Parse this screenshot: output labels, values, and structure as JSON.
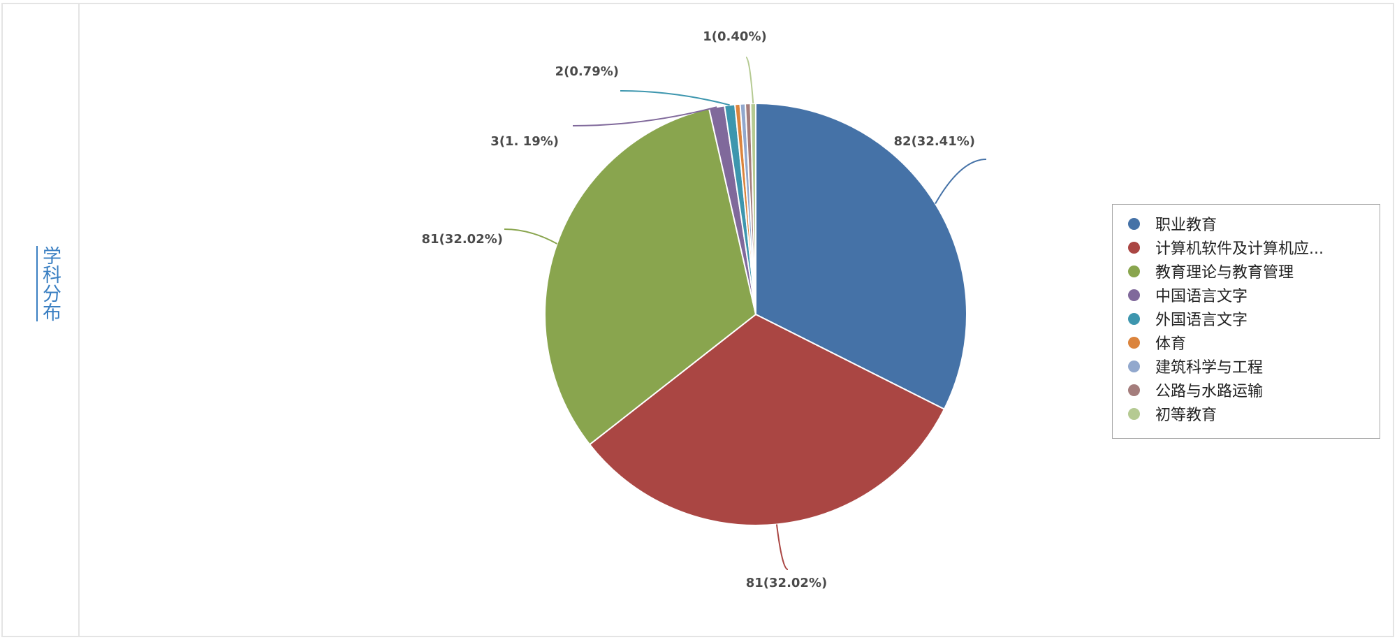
{
  "sidebar": {
    "title": "学科分布"
  },
  "chart_data": {
    "type": "pie",
    "categories": [
      "职业教育",
      "计算机软件及计算机应...",
      "教育理论与教育管理",
      "中国语言文字",
      "外国语言文字",
      "体育",
      "建筑科学与工程",
      "公路与水路运输",
      "初等教育"
    ],
    "values": [
      82,
      81,
      81,
      3,
      2,
      1,
      1,
      1,
      1
    ],
    "data_labels": [
      "82(32.41%)",
      "81(32.02%)",
      "81(32.02%)",
      "3(1. 19%)",
      "2(0.79%)",
      "",
      "",
      "",
      "1(0.40%)"
    ],
    "colors": [
      "#4572a7",
      "#aa4643",
      "#89a54e",
      "#80699b",
      "#3d96ae",
      "#db843d",
      "#92a8cd",
      "#a47d7c",
      "#b5ca92"
    ],
    "legend_position": "right"
  }
}
